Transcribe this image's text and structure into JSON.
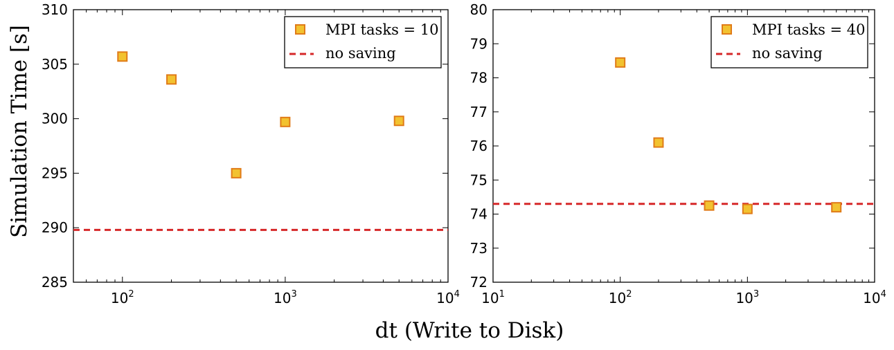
{
  "figure": {
    "ylabel": "Simulation Time [s]",
    "xlabel": "dt (Write to Disk)",
    "colors": {
      "marker_fill": "#f2c230",
      "marker_edge": "#e07b18",
      "baseline": "#d62728",
      "axes": "#000000"
    }
  },
  "chart_data": [
    {
      "type": "scatter",
      "xscale": "log",
      "xlim": [
        50,
        10000
      ],
      "ylim": [
        285,
        310
      ],
      "yticks": [
        285,
        290,
        295,
        300,
        305,
        310
      ],
      "yticklabels": [
        "285",
        "290",
        "295",
        "300",
        "305",
        "310"
      ],
      "xticks": [
        {
          "value": 100,
          "base": "10",
          "exp": "2"
        },
        {
          "value": 1000,
          "base": "10",
          "exp": "3"
        },
        {
          "value": 10000,
          "base": "10",
          "exp": "4"
        }
      ],
      "series": [
        {
          "name": "MPI tasks = 10",
          "x": [
            100,
            200,
            500,
            1000,
            5000
          ],
          "y": [
            305.7,
            303.6,
            295.0,
            299.7,
            299.8
          ]
        }
      ],
      "hline": {
        "name": "no saving",
        "y": 289.8
      },
      "legend": {
        "placement": "top-right",
        "series_label": "MPI tasks = 10",
        "line_label": "no saving"
      }
    },
    {
      "type": "scatter",
      "xscale": "log",
      "xlim": [
        10,
        10000
      ],
      "ylim": [
        72,
        80
      ],
      "yticks": [
        72,
        73,
        74,
        75,
        76,
        77,
        78,
        79,
        80
      ],
      "yticklabels": [
        "72",
        "73",
        "74",
        "75",
        "76",
        "77",
        "78",
        "79",
        "80"
      ],
      "xticks": [
        {
          "value": 10,
          "base": "10",
          "exp": "1"
        },
        {
          "value": 100,
          "base": "10",
          "exp": "2"
        },
        {
          "value": 1000,
          "base": "10",
          "exp": "3"
        },
        {
          "value": 10000,
          "base": "10",
          "exp": "4"
        }
      ],
      "series": [
        {
          "name": "MPI tasks = 40",
          "x": [
            100,
            200,
            500,
            1000,
            5000
          ],
          "y": [
            78.45,
            76.1,
            74.25,
            74.15,
            74.2
          ]
        }
      ],
      "hline": {
        "name": "no saving",
        "y": 74.3
      },
      "legend": {
        "placement": "top-right",
        "series_label": "MPI tasks = 40",
        "line_label": "no saving"
      }
    }
  ]
}
